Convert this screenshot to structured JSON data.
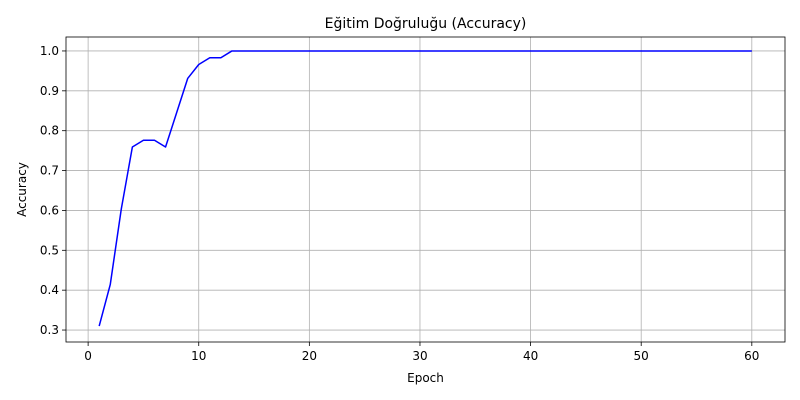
{
  "chart_data": {
    "type": "line",
    "title": "Eğitim Doğruluğu (Accuracy)",
    "xlabel": "Epoch",
    "ylabel": "Accuracy",
    "xlim": [
      -2,
      63
    ],
    "ylim": [
      0.27,
      1.035
    ],
    "xticks": [
      0,
      10,
      20,
      30,
      40,
      50,
      60
    ],
    "yticks": [
      0.3,
      0.4,
      0.5,
      0.6,
      0.7,
      0.8,
      0.9,
      1.0
    ],
    "ytick_labels": [
      "0.3",
      "0.4",
      "0.5",
      "0.6",
      "0.7",
      "0.8",
      "0.9",
      "1.0"
    ],
    "grid": true,
    "series": [
      {
        "color": "#0000ff",
        "x": [
          1,
          2,
          3,
          4,
          5,
          6,
          7,
          8,
          9,
          10,
          11,
          12,
          13,
          14,
          15,
          16,
          17,
          18,
          19,
          20,
          21,
          22,
          23,
          24,
          25,
          26,
          27,
          28,
          29,
          30,
          31,
          32,
          33,
          34,
          35,
          36,
          37,
          38,
          39,
          40,
          41,
          42,
          43,
          44,
          45,
          46,
          47,
          48,
          49,
          50,
          51,
          52,
          53,
          54,
          55,
          56,
          57,
          58,
          59,
          60
        ],
        "y": [
          0.31,
          0.414,
          0.604,
          0.759,
          0.776,
          0.776,
          0.759,
          0.845,
          0.931,
          0.966,
          0.983,
          0.983,
          1.0,
          1.0,
          1.0,
          1.0,
          1.0,
          1.0,
          1.0,
          1.0,
          1.0,
          1.0,
          1.0,
          1.0,
          1.0,
          1.0,
          1.0,
          1.0,
          1.0,
          1.0,
          1.0,
          1.0,
          1.0,
          1.0,
          1.0,
          1.0,
          1.0,
          1.0,
          1.0,
          1.0,
          1.0,
          1.0,
          1.0,
          1.0,
          1.0,
          1.0,
          1.0,
          1.0,
          1.0,
          1.0,
          1.0,
          1.0,
          1.0,
          1.0,
          1.0,
          1.0,
          1.0,
          1.0,
          1.0,
          1.0
        ]
      }
    ]
  }
}
